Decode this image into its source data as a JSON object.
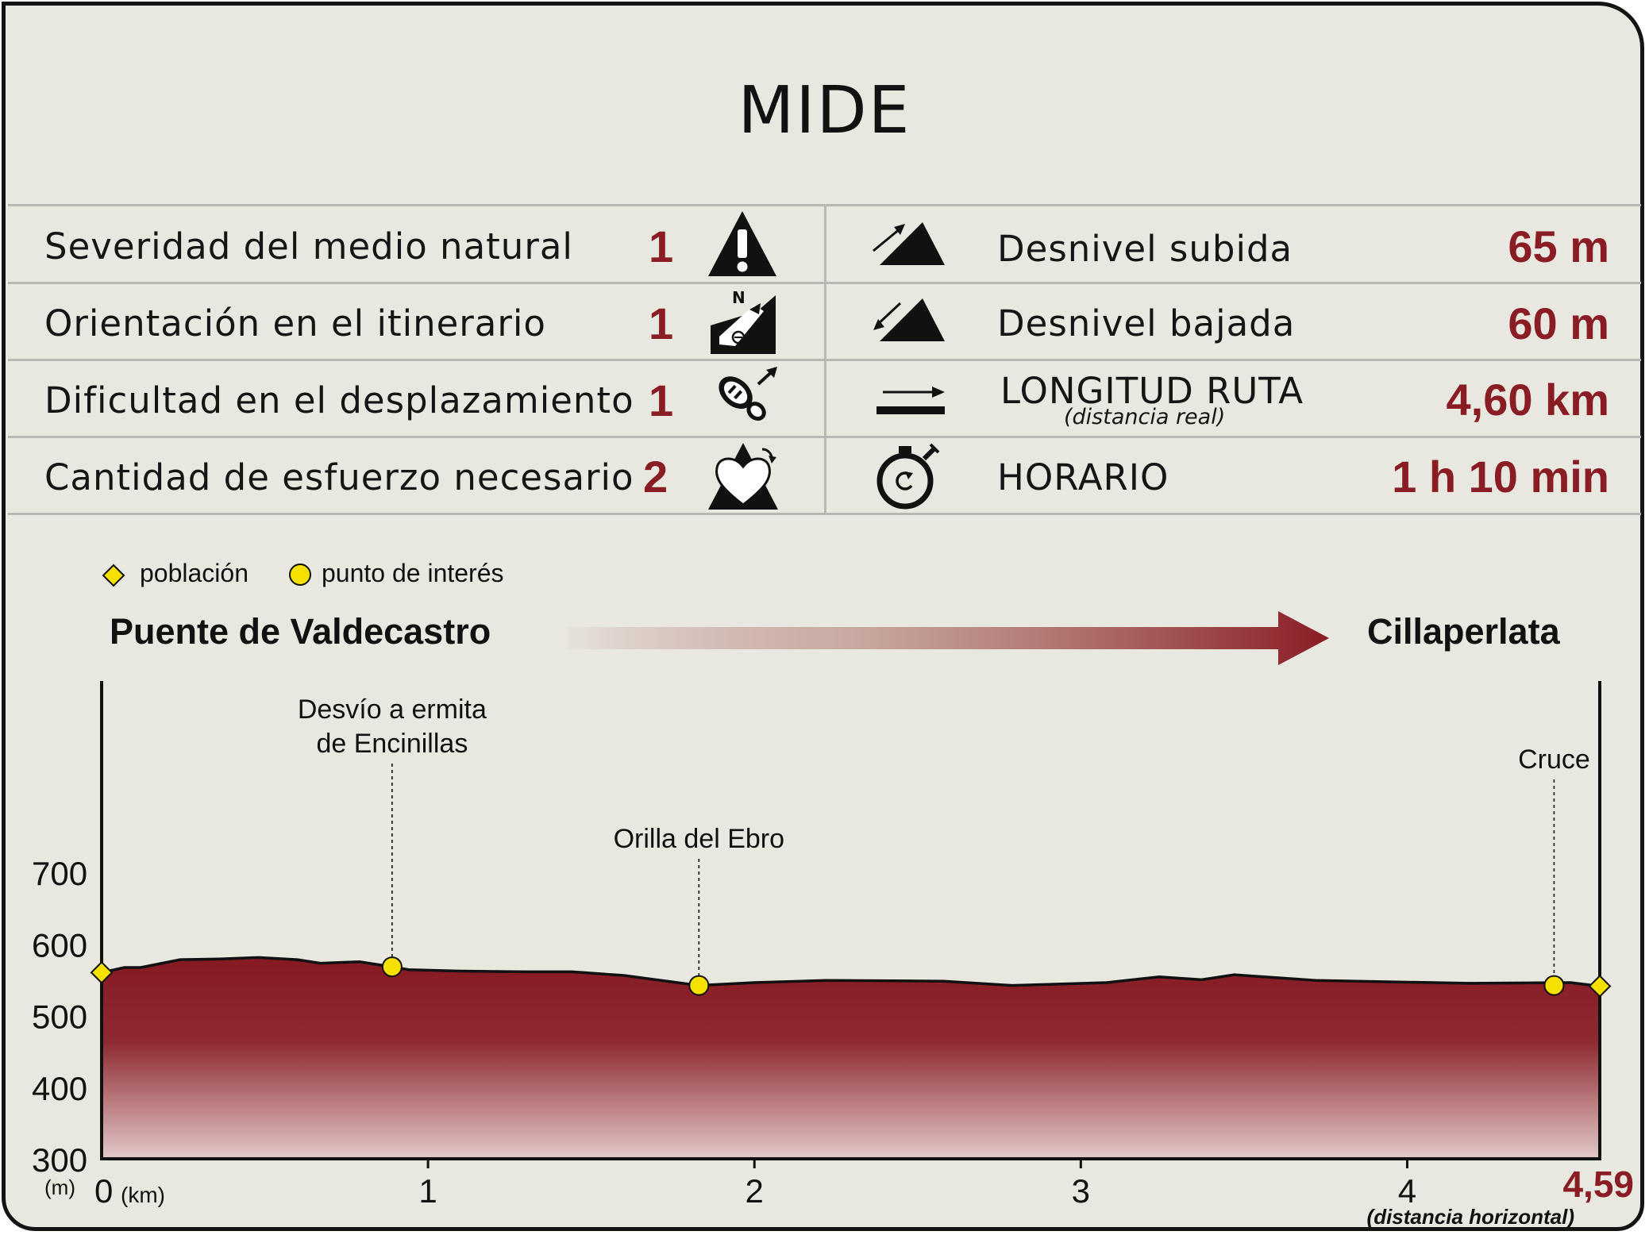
{
  "title": "MIDE",
  "mide": {
    "rows": [
      {
        "label": "Severidad del medio natural",
        "value": "1",
        "icon": "warning-triangle-icon"
      },
      {
        "label": "Orientación en el itinerario",
        "value": "1",
        "icon": "orientation-sign-icon"
      },
      {
        "label": "Dificultad en el desplazamiento",
        "value": "1",
        "icon": "footprint-icon"
      },
      {
        "label": "Cantidad de esfuerzo necesario",
        "value": "2",
        "icon": "heart-mountain-icon"
      }
    ],
    "stats": [
      {
        "label": "Desnivel subida",
        "value": "65 m",
        "icon": "ascent-icon"
      },
      {
        "label": "Desnivel bajada",
        "value": "60 m",
        "icon": "descent-icon"
      },
      {
        "label": "LONGITUD RUTA",
        "sublabel": "(distancia real)",
        "value": "4,60 km",
        "icon": "distance-arrow-icon"
      },
      {
        "label": "HORARIO",
        "value": "1 h 10 min",
        "icon": "stopwatch-icon"
      }
    ]
  },
  "legend": {
    "town": "población",
    "poi": "punto de interés"
  },
  "route": {
    "start": "Puente de Valdecastro",
    "end": "Cillaperlata"
  },
  "colors": {
    "accent": "#8a1c24",
    "marker_fill": "#f5e000"
  },
  "chart_data": {
    "type": "area",
    "xlabel": "(km)",
    "ylabel": "(m)",
    "xlim": [
      0,
      4.59
    ],
    "ylim": [
      300,
      700
    ],
    "x_ticks": [
      "0",
      "1",
      "2",
      "3",
      "4"
    ],
    "x_end_label": "4,59",
    "x_end_note": "(distancia horizontal)",
    "y_ticks": [
      "300",
      "400",
      "500",
      "600",
      "700"
    ],
    "points": [
      [
        0,
        560
      ],
      [
        0.07,
        567
      ],
      [
        0.12,
        567
      ],
      [
        0.24,
        578
      ],
      [
        0.36,
        579
      ],
      [
        0.48,
        581
      ],
      [
        0.6,
        578
      ],
      [
        0.67,
        573
      ],
      [
        0.79,
        575
      ],
      [
        0.89,
        568
      ],
      [
        0.94,
        564
      ],
      [
        1.1,
        562
      ],
      [
        1.3,
        561
      ],
      [
        1.44,
        561
      ],
      [
        1.6,
        556
      ],
      [
        1.83,
        542
      ],
      [
        2.0,
        546
      ],
      [
        2.22,
        549
      ],
      [
        2.58,
        548
      ],
      [
        2.79,
        542
      ],
      [
        3.08,
        546
      ],
      [
        3.24,
        554
      ],
      [
        3.37,
        550
      ],
      [
        3.47,
        557
      ],
      [
        3.72,
        549
      ],
      [
        4.19,
        545
      ],
      [
        4.5,
        546
      ],
      [
        4.59,
        541
      ]
    ],
    "markers": [
      {
        "x": 0,
        "y": 560,
        "kind": "town"
      },
      {
        "x": 0.89,
        "y": 568,
        "kind": "poi",
        "label": [
          "Desvío a ermita",
          "de Encinillas"
        ]
      },
      {
        "x": 1.83,
        "y": 542,
        "kind": "poi",
        "label": [
          "Orilla del Ebro"
        ]
      },
      {
        "x": 4.45,
        "y": 542,
        "kind": "poi",
        "label": [
          "Cruce"
        ]
      },
      {
        "x": 4.59,
        "y": 541,
        "kind": "town"
      }
    ]
  }
}
